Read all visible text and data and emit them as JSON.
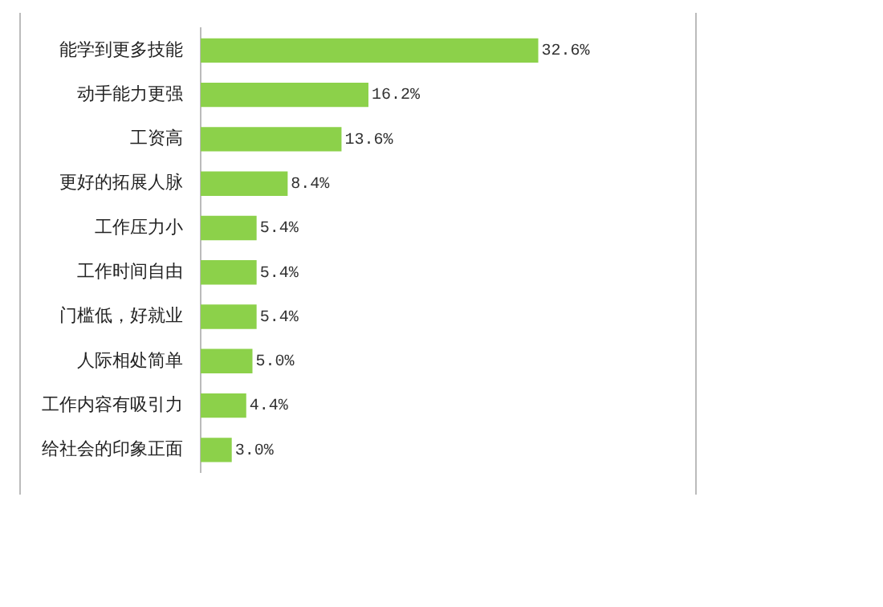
{
  "chart_data": {
    "type": "bar",
    "orientation": "horizontal",
    "categories": [
      "能学到更多技能",
      "动手能力更强",
      "工资高",
      "更好的拓展人脉",
      "工作压力小",
      "工作时间自由",
      "门槛低，好就业",
      "人际相处简单",
      "工作内容有吸引力",
      "给社会的印象正面"
    ],
    "values": [
      32.6,
      16.2,
      13.6,
      8.4,
      5.4,
      5.4,
      5.4,
      5.0,
      4.4,
      3.0
    ],
    "value_labels": [
      "32.6%",
      "16.2%",
      "13.6%",
      "8.4%",
      "5.4%",
      "5.4%",
      "5.4%",
      "5.0%",
      "4.4%",
      "3.0%"
    ],
    "color": "#8cd14a",
    "grid": false,
    "legend": false
  }
}
